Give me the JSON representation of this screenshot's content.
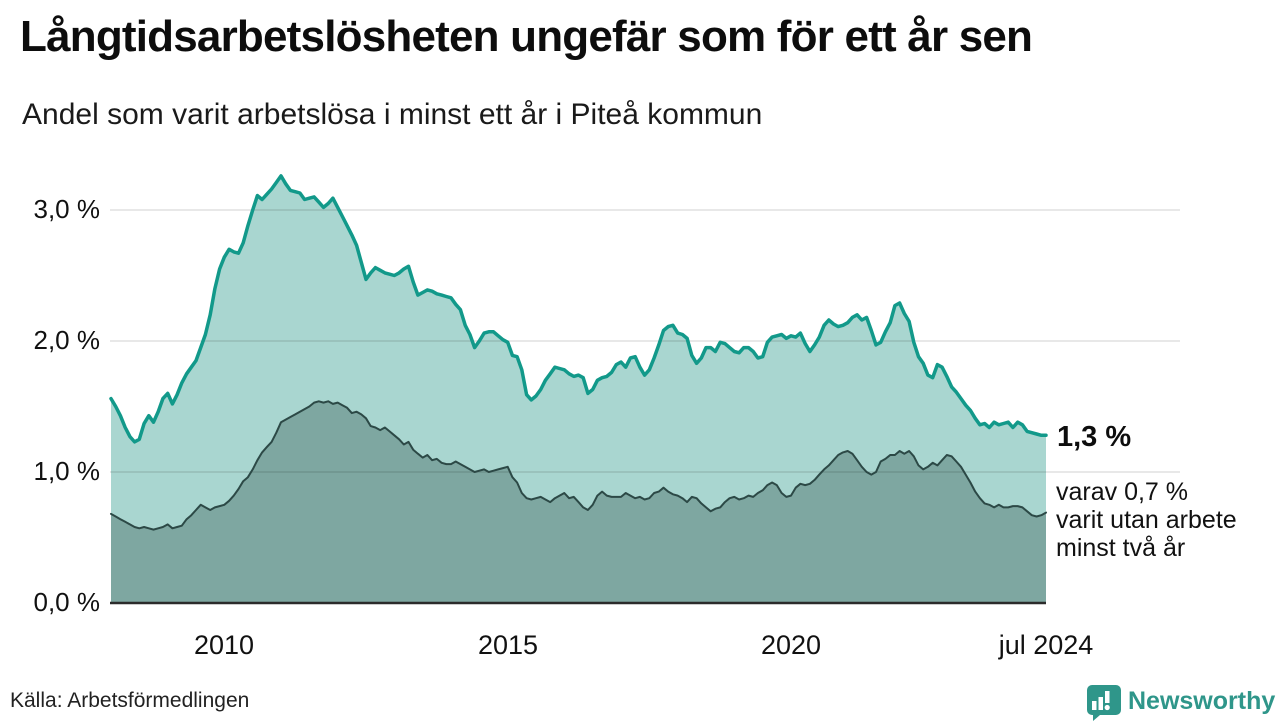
{
  "title": "Långtidsarbetslösheten ungefär som för ett år sen",
  "subtitle": "Andel som varit arbetslösa i minst ett år i Piteå kommun",
  "source": "Källa: Arbetsförmedlingen",
  "branding": {
    "name": "Newsworthy",
    "icon": "newsworthy-speech-bubble-chart-icon",
    "color": "#2f968a"
  },
  "annotations": {
    "latest_value": "1,3 %",
    "secondary": "varav 0,7 %\nvarit utan arbete\nminst två år"
  },
  "colors": {
    "series1_line": "#12998a",
    "series1_fill": "#a9d6d0",
    "series2_line": "#2c4946",
    "series2_fill": "#7ea7a1",
    "grid": "rgba(0,0,0,0.12)",
    "axis": "#2b2b2b",
    "text": "#111111",
    "background": "#ffffff"
  },
  "chart_data": {
    "type": "area",
    "title": "Långtidsarbetslösheten ungefär som för ett år sen",
    "subtitle": "Andel som varit arbetslösa i minst ett år i Piteå kommun",
    "x_start": 2008.0,
    "x_end": 2024.5,
    "x_step_months": 1,
    "ylim": [
      0,
      3.35
    ],
    "grid": true,
    "legend": "none",
    "yticks": [
      {
        "label": "0,0 %",
        "v": 0
      },
      {
        "label": "1,0 %",
        "v": 1
      },
      {
        "label": "2,0 %",
        "v": 2
      },
      {
        "label": "3,0 %",
        "v": 3
      }
    ],
    "xticks": [
      {
        "label": "2010",
        "t": 2010
      },
      {
        "label": "2015",
        "t": 2015
      },
      {
        "label": "2020",
        "t": 2020
      },
      {
        "label": "jul 2024",
        "t": 2024.5
      }
    ],
    "series": [
      {
        "name": "Arbetslösa minst ett år",
        "line_color": "#12998a",
        "fill_color": "#a9d6d0",
        "line_width": 3.5,
        "values": [
          1.56,
          1.5,
          1.43,
          1.34,
          1.27,
          1.23,
          1.25,
          1.37,
          1.43,
          1.38,
          1.46,
          1.56,
          1.6,
          1.52,
          1.59,
          1.68,
          1.75,
          1.8,
          1.85,
          1.95,
          2.05,
          2.2,
          2.4,
          2.55,
          2.64,
          2.7,
          2.68,
          2.67,
          2.75,
          2.88,
          3.0,
          3.11,
          3.08,
          3.12,
          3.16,
          3.21,
          3.26,
          3.2,
          3.15,
          3.14,
          3.13,
          3.08,
          3.09,
          3.1,
          3.06,
          3.02,
          3.05,
          3.09,
          3.02,
          2.95,
          2.88,
          2.81,
          2.73,
          2.6,
          2.47,
          2.52,
          2.56,
          2.54,
          2.52,
          2.51,
          2.5,
          2.52,
          2.55,
          2.57,
          2.45,
          2.35,
          2.37,
          2.39,
          2.38,
          2.36,
          2.35,
          2.34,
          2.33,
          2.28,
          2.24,
          2.12,
          2.05,
          1.95,
          2.0,
          2.06,
          2.07,
          2.07,
          2.04,
          2.01,
          1.99,
          1.89,
          1.88,
          1.78,
          1.59,
          1.55,
          1.58,
          1.63,
          1.7,
          1.75,
          1.8,
          1.79,
          1.78,
          1.75,
          1.73,
          1.74,
          1.72,
          1.6,
          1.63,
          1.7,
          1.72,
          1.73,
          1.76,
          1.82,
          1.84,
          1.8,
          1.87,
          1.88,
          1.8,
          1.74,
          1.78,
          1.87,
          1.97,
          2.08,
          2.11,
          2.12,
          2.06,
          2.05,
          2.02,
          1.89,
          1.83,
          1.87,
          1.95,
          1.95,
          1.92,
          1.99,
          1.98,
          1.95,
          1.92,
          1.91,
          1.95,
          1.95,
          1.92,
          1.87,
          1.88,
          1.99,
          2.03,
          2.04,
          2.05,
          2.02,
          2.04,
          2.03,
          2.06,
          1.98,
          1.92,
          1.97,
          2.03,
          2.12,
          2.16,
          2.13,
          2.11,
          2.12,
          2.14,
          2.18,
          2.2,
          2.16,
          2.18,
          2.08,
          1.97,
          1.99,
          2.07,
          2.14,
          2.27,
          2.29,
          2.21,
          2.15,
          1.99,
          1.88,
          1.83,
          1.74,
          1.72,
          1.82,
          1.8,
          1.73,
          1.65,
          1.61,
          1.56,
          1.51,
          1.47,
          1.41,
          1.36,
          1.37,
          1.34,
          1.38,
          1.36,
          1.37,
          1.38,
          1.34,
          1.38,
          1.36,
          1.31,
          1.3,
          1.29,
          1.28,
          1.28
        ]
      },
      {
        "name": "Arbetslösa minst två år",
        "line_color": "#2c4946",
        "fill_color": "#7ea7a1",
        "line_width": 2,
        "values": [
          0.68,
          0.66,
          0.64,
          0.62,
          0.6,
          0.58,
          0.57,
          0.58,
          0.57,
          0.56,
          0.57,
          0.58,
          0.6,
          0.57,
          0.58,
          0.59,
          0.64,
          0.67,
          0.71,
          0.75,
          0.73,
          0.71,
          0.73,
          0.74,
          0.75,
          0.78,
          0.82,
          0.87,
          0.93,
          0.96,
          1.02,
          1.09,
          1.15,
          1.19,
          1.23,
          1.3,
          1.38,
          1.4,
          1.42,
          1.44,
          1.46,
          1.48,
          1.5,
          1.53,
          1.54,
          1.53,
          1.54,
          1.52,
          1.53,
          1.51,
          1.49,
          1.45,
          1.46,
          1.44,
          1.41,
          1.35,
          1.34,
          1.32,
          1.34,
          1.31,
          1.28,
          1.25,
          1.21,
          1.23,
          1.17,
          1.14,
          1.11,
          1.13,
          1.09,
          1.1,
          1.07,
          1.06,
          1.06,
          1.08,
          1.06,
          1.04,
          1.02,
          1.0,
          1.01,
          1.02,
          1.0,
          1.01,
          1.02,
          1.03,
          1.04,
          0.96,
          0.92,
          0.84,
          0.8,
          0.79,
          0.8,
          0.81,
          0.79,
          0.77,
          0.8,
          0.82,
          0.84,
          0.8,
          0.81,
          0.77,
          0.73,
          0.71,
          0.75,
          0.82,
          0.85,
          0.82,
          0.81,
          0.81,
          0.81,
          0.84,
          0.82,
          0.8,
          0.81,
          0.79,
          0.8,
          0.84,
          0.85,
          0.88,
          0.85,
          0.83,
          0.82,
          0.8,
          0.77,
          0.81,
          0.8,
          0.76,
          0.73,
          0.7,
          0.72,
          0.73,
          0.77,
          0.8,
          0.81,
          0.79,
          0.8,
          0.82,
          0.81,
          0.84,
          0.86,
          0.9,
          0.92,
          0.9,
          0.84,
          0.81,
          0.82,
          0.88,
          0.91,
          0.9,
          0.91,
          0.94,
          0.98,
          1.02,
          1.05,
          1.09,
          1.13,
          1.15,
          1.16,
          1.14,
          1.09,
          1.04,
          1.0,
          0.98,
          1.0,
          1.08,
          1.1,
          1.13,
          1.13,
          1.16,
          1.14,
          1.16,
          1.12,
          1.05,
          1.02,
          1.04,
          1.07,
          1.05,
          1.09,
          1.13,
          1.12,
          1.08,
          1.04,
          0.98,
          0.92,
          0.85,
          0.8,
          0.76,
          0.75,
          0.73,
          0.75,
          0.73,
          0.73,
          0.74,
          0.74,
          0.73,
          0.7,
          0.67,
          0.66,
          0.67,
          0.69
        ]
      }
    ]
  }
}
